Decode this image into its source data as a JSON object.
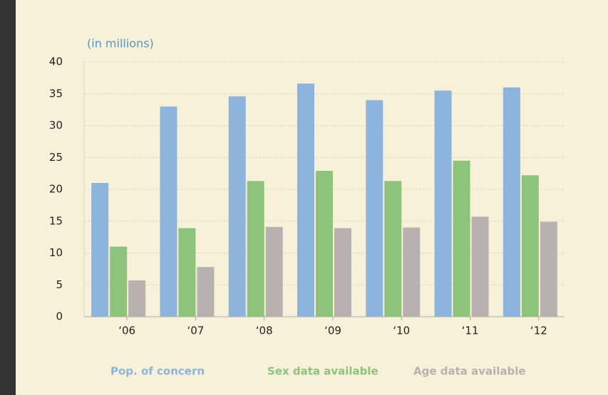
{
  "chart_data": {
    "type": "bar",
    "unit_label": "(in millions)",
    "categories": [
      "‘06",
      "‘07",
      "‘08",
      "‘09",
      "‘10",
      "‘11",
      "‘12"
    ],
    "series": [
      {
        "name": "Pop. of concern",
        "color": "#8db4dc",
        "values": [
          21,
          33,
          34.6,
          36.6,
          34,
          35.5,
          36
        ]
      },
      {
        "name": "Sex data available",
        "color": "#8dc37a",
        "values": [
          11,
          13.9,
          21.3,
          22.9,
          21.3,
          24.5,
          22.2
        ]
      },
      {
        "name": "Age data available",
        "color": "#b7b1b0",
        "values": [
          5.7,
          7.8,
          14.1,
          13.9,
          14,
          15.7,
          14.9
        ]
      }
    ],
    "ylim": [
      0,
      40
    ],
    "yticks": [
      0,
      5,
      10,
      15,
      20,
      25,
      30,
      35,
      40
    ],
    "grid": true,
    "legend": "bottom"
  }
}
